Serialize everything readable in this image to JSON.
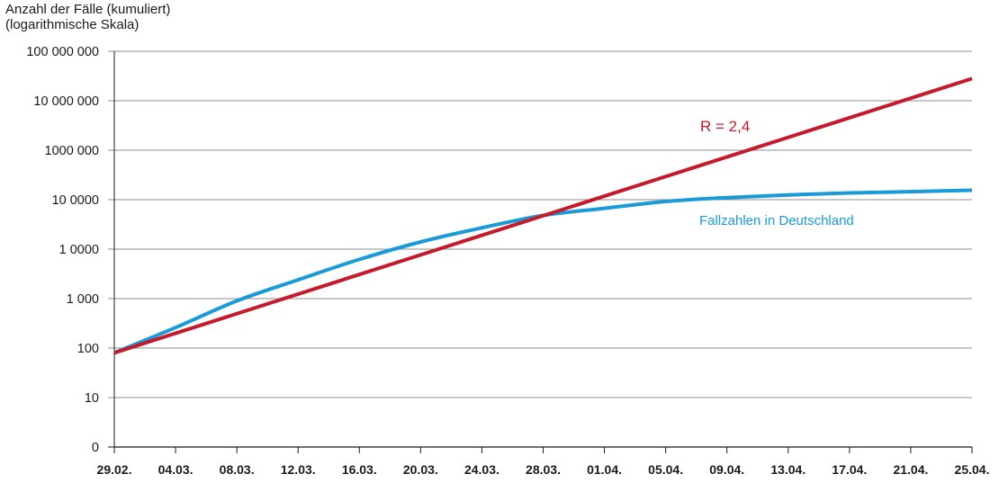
{
  "chart_data": {
    "type": "line",
    "title": "",
    "ylabel_lines": [
      "Anzahl der Fälle (kumuliert)",
      "(logarithmische Skala)"
    ],
    "xlabel": "",
    "y_scale": "log",
    "y_ticks": [
      "0",
      "10",
      "100",
      "1 000",
      "1 0000",
      "10 0000",
      "1000 000",
      "10 000 000",
      "100 000 000"
    ],
    "x_ticks": [
      "29.02.",
      "04.03.",
      "08.03.",
      "12.03.",
      "16.03.",
      "20.03.",
      "24.03.",
      "28.03.",
      "01.04.",
      "05.04.",
      "09.04.",
      "13.04.",
      "17.04.",
      "21.04.",
      "25.04."
    ],
    "grid": "horizontal",
    "series": [
      {
        "name": "Fallzahlen in Deutschland",
        "color": "#1a9ad6",
        "x": [
          "29.02.",
          "04.03.",
          "08.03.",
          "12.03.",
          "16.03.",
          "20.03.",
          "24.03.",
          "28.03.",
          "01.04.",
          "05.04.",
          "09.04.",
          "13.04.",
          "17.04.",
          "21.04.",
          "25.04."
        ],
        "values": [
          80,
          260,
          900,
          2400,
          6200,
          14000,
          27000,
          48000,
          67000,
          92000,
          110000,
          125000,
          137000,
          145000,
          155000
        ]
      },
      {
        "name": "R = 2,4",
        "color": "#c41a2c",
        "x": [
          "29.02.",
          "25.04."
        ],
        "values": [
          80,
          28000000
        ]
      }
    ],
    "annotations": [
      {
        "text": "R = 2,4",
        "color": "#c41a2c"
      },
      {
        "text": "Fallzahlen in Deutschland",
        "color": "#1a9ad6"
      }
    ],
    "colors": {
      "axis": "#1a1a1a",
      "grid": "#8c8c8c"
    }
  }
}
